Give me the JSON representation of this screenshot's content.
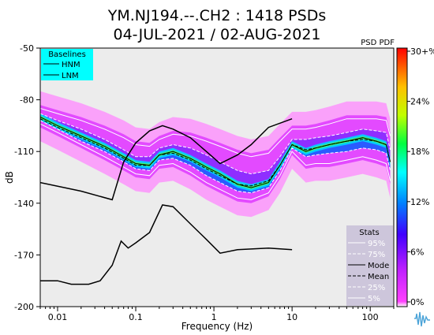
{
  "chart_data": {
    "type": "heatmap",
    "title_line1": "YM.NJ194.--.CH2 : 1418 PSDs",
    "title_line2": "04-JUL-2021 / 02-AUG-2021",
    "corner_label": "PSD PDF",
    "xlabel": "Frequency (Hz)",
    "ylabel": "dB",
    "x_scale": "log",
    "xlim": [
      0.006,
      200
    ],
    "ylim": [
      -200,
      -50
    ],
    "x_ticks": [
      {
        "value": 0.01,
        "label": "0.01"
      },
      {
        "value": 0.1,
        "label": "0.1"
      },
      {
        "value": 1,
        "label": "1"
      },
      {
        "value": 10,
        "label": "10"
      },
      {
        "value": 100,
        "label": "100"
      }
    ],
    "y_ticks": [
      {
        "value": -50,
        "label": "-50"
      },
      {
        "value": -80,
        "label": "-80"
      },
      {
        "value": -110,
        "label": "-110"
      },
      {
        "value": -140,
        "label": "-140"
      },
      {
        "value": -170,
        "label": "-170"
      },
      {
        "value": -200,
        "label": "-200"
      }
    ],
    "colorbar": {
      "ticks": [
        "30+%",
        "24%",
        "18%",
        "12%",
        "6%",
        "0%"
      ],
      "colors": [
        "#ff0000",
        "#ff8000",
        "#ffff00",
        "#00ff00",
        "#00ffff",
        "#0000ff",
        "#8000ff",
        "#ff00ff"
      ]
    },
    "baselines": {
      "title": "Baselines",
      "bg_color": "#00ffff",
      "entries": [
        "HNM",
        "LNM"
      ],
      "hnm": {
        "x": [
          0.006,
          0.02,
          0.05,
          0.07,
          0.1,
          0.15,
          0.22,
          0.3,
          0.5,
          0.8,
          1.2,
          2,
          3,
          5,
          10
        ],
        "y": [
          -128,
          -133,
          -138,
          -116,
          -105,
          -98,
          -95,
          -97,
          -102,
          -110,
          -117,
          -112,
          -106,
          -96,
          -91
        ]
      },
      "lnm": {
        "x": [
          0.006,
          0.01,
          0.015,
          0.025,
          0.035,
          0.05,
          0.065,
          0.08,
          0.1,
          0.15,
          0.22,
          0.3,
          0.5,
          0.8,
          1.2,
          2,
          5,
          10
        ],
        "y": [
          -185,
          -185,
          -187,
          -187,
          -185,
          -176,
          -162,
          -166,
          -163,
          -157,
          -141,
          -142,
          -152,
          -161,
          -169,
          -167,
          -166,
          -167
        ]
      }
    },
    "stats": {
      "title": "Stats",
      "entries": [
        "95%",
        "75%",
        "Mode",
        "Mean",
        "25%",
        "5%"
      ],
      "x": [
        0.006,
        0.01,
        0.02,
        0.04,
        0.07,
        0.1,
        0.15,
        0.2,
        0.3,
        0.5,
        0.8,
        1.2,
        2,
        3,
        5,
        7,
        10,
        15,
        20,
        30,
        50,
        80,
        120,
        160,
        180
      ],
      "p95": [
        -85,
        -88,
        -92,
        -97,
        -102,
        -106,
        -107,
        -103,
        -100,
        -101,
        -104,
        -107,
        -111,
        -113,
        -111,
        -104,
        -97,
        -97,
        -96,
        -94,
        -91,
        -91,
        -91,
        -92,
        -101
      ],
      "p75": [
        -88,
        -92,
        -97,
        -103,
        -109,
        -113,
        -113,
        -108,
        -106,
        -108,
        -112,
        -116,
        -121,
        -123,
        -121,
        -113,
        -103,
        -103,
        -102,
        -101,
        -99,
        -97,
        -98,
        -99,
        -109
      ],
      "mode": [
        -90,
        -95,
        -101,
        -107,
        -113,
        -117,
        -118,
        -112,
        -110,
        -114,
        -119,
        -123,
        -129,
        -131,
        -128,
        -118,
        -106,
        -110,
        -108,
        -106,
        -104,
        -102,
        -104,
        -106,
        -116
      ],
      "mean": [
        -91,
        -96,
        -102,
        -108,
        -114,
        -118,
        -118,
        -112,
        -111,
        -115,
        -120,
        -124,
        -129,
        -130,
        -127,
        -118,
        -106,
        -109,
        -108,
        -106,
        -104,
        -103,
        -104,
        -106,
        -116
      ],
      "p25": [
        -92,
        -97,
        -104,
        -110,
        -116,
        -120,
        -121,
        -115,
        -114,
        -118,
        -124,
        -128,
        -133,
        -134,
        -131,
        -121,
        -108,
        -113,
        -112,
        -111,
        -110,
        -108,
        -109,
        -111,
        -121
      ],
      "p5": [
        -94,
        -99,
        -106,
        -113,
        -119,
        -123,
        -124,
        -118,
        -117,
        -122,
        -128,
        -132,
        -137,
        -138,
        -134,
        -124,
        -110,
        -118,
        -117,
        -117,
        -115,
        -113,
        -115,
        -117,
        -127
      ]
    }
  }
}
